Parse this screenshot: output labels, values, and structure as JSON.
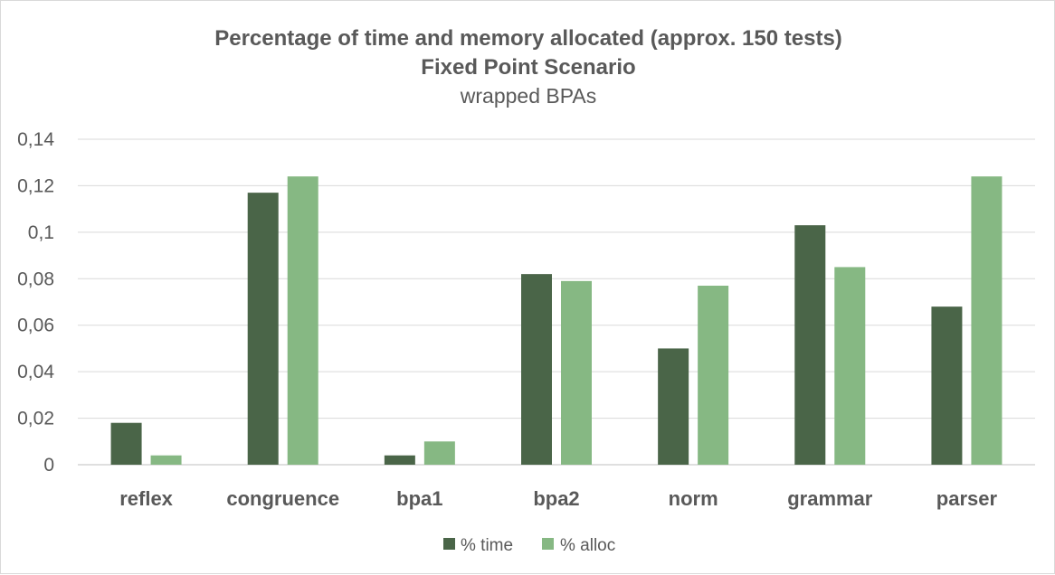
{
  "chart_data": {
    "type": "bar",
    "title": "Percentage of time and memory allocated (approx. 150 tests)",
    "subtitle": "Fixed Point Scenario",
    "subtitle2": "wrapped BPAs",
    "xlabel": "",
    "ylabel": "",
    "categories": [
      "reflex",
      "congruence",
      "bpa1",
      "bpa2",
      "norm",
      "grammar",
      "parser"
    ],
    "series": [
      {
        "name": "% time",
        "color": "#4a6548",
        "values": [
          0.018,
          0.117,
          0.004,
          0.082,
          0.05,
          0.103,
          0.068
        ]
      },
      {
        "name": "% alloc",
        "color": "#86b883",
        "values": [
          0.004,
          0.124,
          0.01,
          0.079,
          0.077,
          0.085,
          0.124
        ]
      }
    ],
    "ylim": [
      0,
      0.14
    ],
    "yticks": [
      0,
      0.02,
      0.04,
      0.06,
      0.08,
      0.1,
      0.12,
      0.14
    ],
    "ytick_labels": [
      "0",
      "0,02",
      "0,04",
      "0,06",
      "0,08",
      "0,1",
      "0,12",
      "0,14"
    ],
    "grid": true,
    "legend_position": "bottom"
  }
}
